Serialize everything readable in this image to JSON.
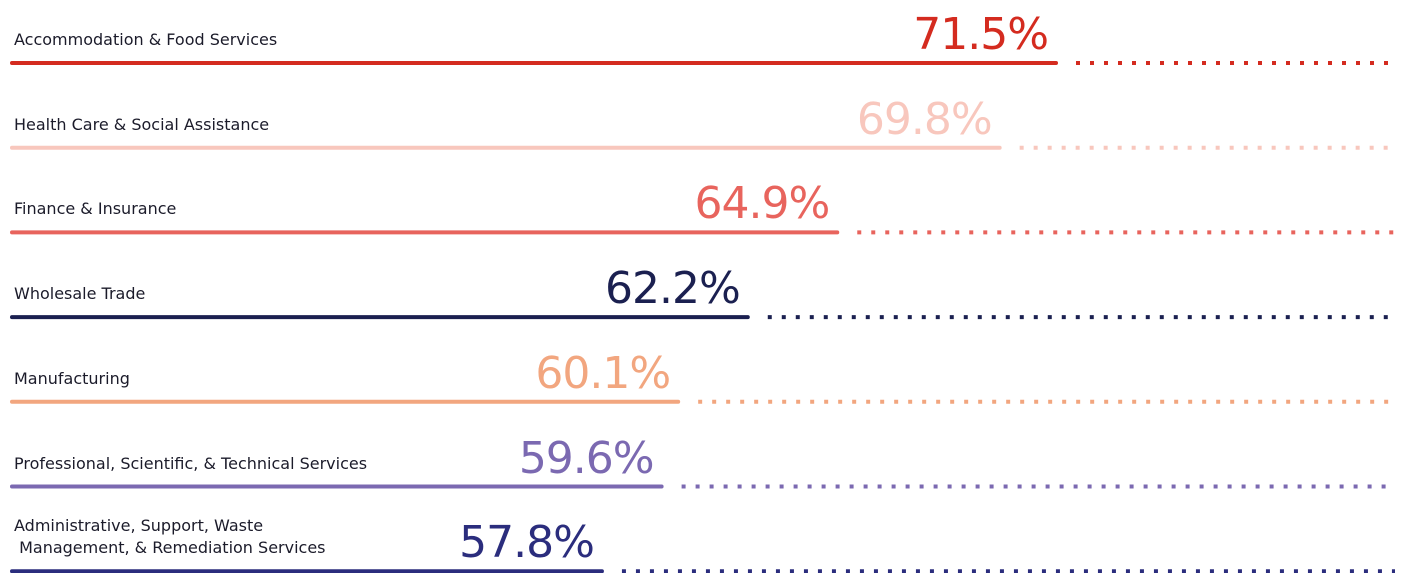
{
  "chart_data": {
    "type": "bar",
    "categories": [
      "Accommodation & Food Services",
      "Health Care & Social Assistance",
      "Finance & Insurance",
      "Wholesale Trade",
      "Manufacturing",
      "Professional, Scientific, & Technical Services",
      "Administrative, Support, Waste\n Management, & Remediation Services"
    ],
    "values": [
      71.5,
      69.8,
      64.9,
      62.2,
      60.1,
      59.6,
      57.8
    ],
    "value_labels": [
      "71.5%",
      "69.8%",
      "64.9%",
      "62.2%",
      "60.1%",
      "59.6%",
      "57.8%"
    ],
    "colors": [
      "#d42b1f",
      "#f8c7bd",
      "#e8645d",
      "#1b2050",
      "#f2a67f",
      "#7b69b1",
      "#2b2d7d"
    ],
    "xlim": [
      40,
      75
    ]
  }
}
